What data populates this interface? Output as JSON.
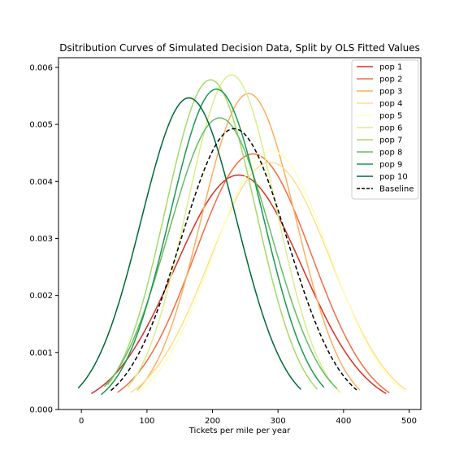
{
  "chart_data": {
    "type": "line",
    "title": "Dsitribution Curves of Simulated Decision Data, Split by OLS Fitted Values",
    "xlabel": "Tickets per mile per year",
    "ylabel": "",
    "xlim": [
      -35,
      518
    ],
    "ylim": [
      0,
      0.00617
    ],
    "x_ticks": [
      0,
      100,
      200,
      300,
      400,
      500
    ],
    "y_ticks": [
      0.0,
      0.001,
      0.002,
      0.003,
      0.004,
      0.005,
      0.006
    ],
    "y_tick_labels": [
      "0.000",
      "0.001",
      "0.002",
      "0.003",
      "0.004",
      "0.005",
      "0.006"
    ],
    "legend_position": "top-right",
    "grid": false,
    "series": [
      {
        "name": "pop 1",
        "color": "#d73027",
        "dash": false,
        "mean": 240,
        "sd": 97,
        "xmin": 15,
        "xmax": 465
      },
      {
        "name": "pop 2",
        "color": "#f46d43",
        "dash": false,
        "mean": 262,
        "sd": 89,
        "xmin": 55,
        "xmax": 470
      },
      {
        "name": "pop 3",
        "color": "#fdae61",
        "dash": false,
        "mean": 255,
        "sd": 72,
        "xmin": 85,
        "xmax": 425
      },
      {
        "name": "pop 4",
        "color": "#fee08b",
        "dash": false,
        "mean": 288,
        "sd": 92,
        "xmin": 75,
        "xmax": 495
      },
      {
        "name": "pop 5",
        "color": "#ffffbf",
        "dash": false,
        "mean": 290,
        "sd": 88,
        "xmin": 85,
        "xmax": 490
      },
      {
        "name": "pop 6",
        "color": "#d9ef8b",
        "dash": false,
        "mean": 229,
        "sd": 68,
        "xmin": 70,
        "xmax": 395
      },
      {
        "name": "pop 7",
        "color": "#a6d96a",
        "dash": false,
        "mean": 197,
        "sd": 69,
        "xmin": 40,
        "xmax": 360
      },
      {
        "name": "pop 8",
        "color": "#66bd63",
        "dash": false,
        "mean": 211,
        "sd": 78,
        "xmin": 35,
        "xmax": 390
      },
      {
        "name": "pop 9",
        "color": "#1a9850",
        "dash": false,
        "mean": 206,
        "sd": 71,
        "xmin": 30,
        "xmax": 370
      },
      {
        "name": "pop 10",
        "color": "#006837",
        "dash": false,
        "mean": 164,
        "sd": 73,
        "xmin": -5,
        "xmax": 335
      },
      {
        "name": "Baseline",
        "color": "#000000",
        "dash": true,
        "mean": 233,
        "sd": 81,
        "xmin": 45,
        "xmax": 420
      }
    ]
  }
}
